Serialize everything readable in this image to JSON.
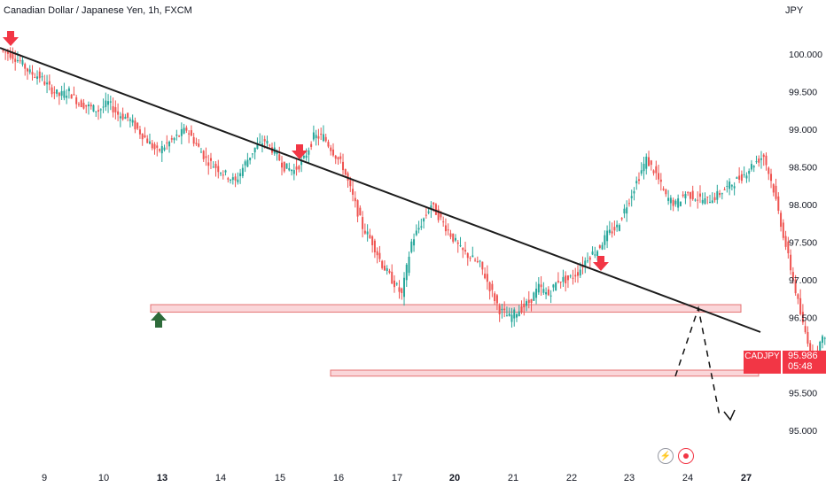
{
  "header": {
    "title": "Canadian Dollar / Japanese Yen, 1h, FXCM",
    "currency": "JPY"
  },
  "price_tag": {
    "symbol": "CADJPY",
    "price": "95.986",
    "countdown": "05:48"
  },
  "colors": {
    "up": "#26a69a",
    "down": "#ef5350",
    "zone_fill": "#f8c8cc",
    "zone_stroke": "#e57373",
    "trendline": "#1c1c1c",
    "arrow_red": "#f23645",
    "arrow_green": "#2e6b3a"
  },
  "icons": [
    "flash-icon",
    "record-icon"
  ],
  "chart_data": {
    "type": "candlestick",
    "title": "Canadian Dollar / Japanese Yen, 1h, FXCM",
    "yunit": "JPY",
    "ylim": [
      94.75,
      100.75
    ],
    "y_ticks": [
      "100.000",
      "99.500",
      "99.000",
      "98.500",
      "98.000",
      "97.500",
      "97.000",
      "96.500",
      "96.000",
      "95.500",
      "95.000"
    ],
    "x_ticks": [
      "9",
      "10",
      "13",
      "14",
      "15",
      "16",
      "17",
      "20",
      "21",
      "22",
      "23",
      "24",
      "27"
    ],
    "x_ticks_bold": [
      "13",
      "20",
      "27"
    ],
    "last_price": 95.986,
    "support_zones": [
      [
        96.57,
        96.67
      ],
      [
        95.72,
        95.8
      ]
    ],
    "resistance_trendline": [
      [
        0,
        100.08
      ],
      [
        67.5,
        96.33
      ]
    ],
    "projection_path": [
      [
        60.9,
        95.82
      ],
      [
        63.5,
        96.62
      ],
      [
        66.4,
        95.1
      ]
    ],
    "arrows_down": [
      [
        0.3,
        100.15
      ],
      [
        27.2,
        98.65
      ],
      [
        54.6,
        97.1
      ]
    ],
    "arrows_up": [
      [
        14.5,
        96.5
      ]
    ],
    "path": [
      100.05,
      100.0,
      99.9,
      99.75,
      99.7,
      99.55,
      99.45,
      99.5,
      99.35,
      99.3,
      99.25,
      99.35,
      99.2,
      99.15,
      99.0,
      98.85,
      98.7,
      98.8,
      98.9,
      99.0,
      98.8,
      98.6,
      98.5,
      98.4,
      98.3,
      98.55,
      98.75,
      98.85,
      98.7,
      98.5,
      98.45,
      98.6,
      98.9,
      98.9,
      98.7,
      98.5,
      98.1,
      97.7,
      97.5,
      97.2,
      97.0,
      96.8,
      97.5,
      97.75,
      98.0,
      97.8,
      97.6,
      97.4,
      97.3,
      97.2,
      96.9,
      96.6,
      96.5,
      96.6,
      96.7,
      96.9,
      96.8,
      97.0,
      97.0,
      97.1,
      97.3,
      97.4,
      97.6,
      97.7,
      98.0,
      98.3,
      98.6,
      98.4,
      98.1,
      98.0,
      98.15,
      98.1,
      98.05,
      98.1,
      98.2,
      98.3,
      98.4,
      98.55,
      98.65,
      98.2,
      97.6,
      97.0,
      96.4,
      96.0,
      96.2,
      96.5,
      96.9,
      97.0,
      96.8,
      96.6,
      96.5,
      96.6,
      96.7,
      96.6,
      96.5,
      96.6,
      96.5,
      96.4,
      96.2,
      96.0,
      96.4,
      96.8,
      97.3,
      97.45,
      97.35,
      97.3,
      97.25,
      97.35,
      97.3,
      97.2,
      97.1,
      96.8,
      96.5,
      96.2,
      96.0,
      96.1,
      96.3,
      96.0,
      95.9,
      96.0,
      96.1,
      96.5,
      96.8,
      96.6,
      96.1,
      95.8,
      95.5,
      95.3,
      95.5,
      95.8,
      96.1,
      96.3,
      96.2,
      96.0,
      96.1,
      96.2,
      96.1,
      96.0,
      95.9,
      95.9,
      96.0,
      95.9,
      95.95,
      96.4,
      96.7,
      96.85,
      96.8,
      96.6,
      96.5,
      96.3,
      96.55,
      96.6,
      96.7,
      96.6,
      96.6,
      96.7,
      96.6,
      96.65,
      96.7,
      96.6,
      96.9,
      97.05,
      96.8,
      96.6,
      96.4,
      96.0,
      95.6,
      95.5,
      95.6,
      95.45,
      95.55,
      95.6,
      95.7,
      95.8,
      96.0,
      96.2,
      96.3,
      96.0,
      95.98
    ]
  }
}
